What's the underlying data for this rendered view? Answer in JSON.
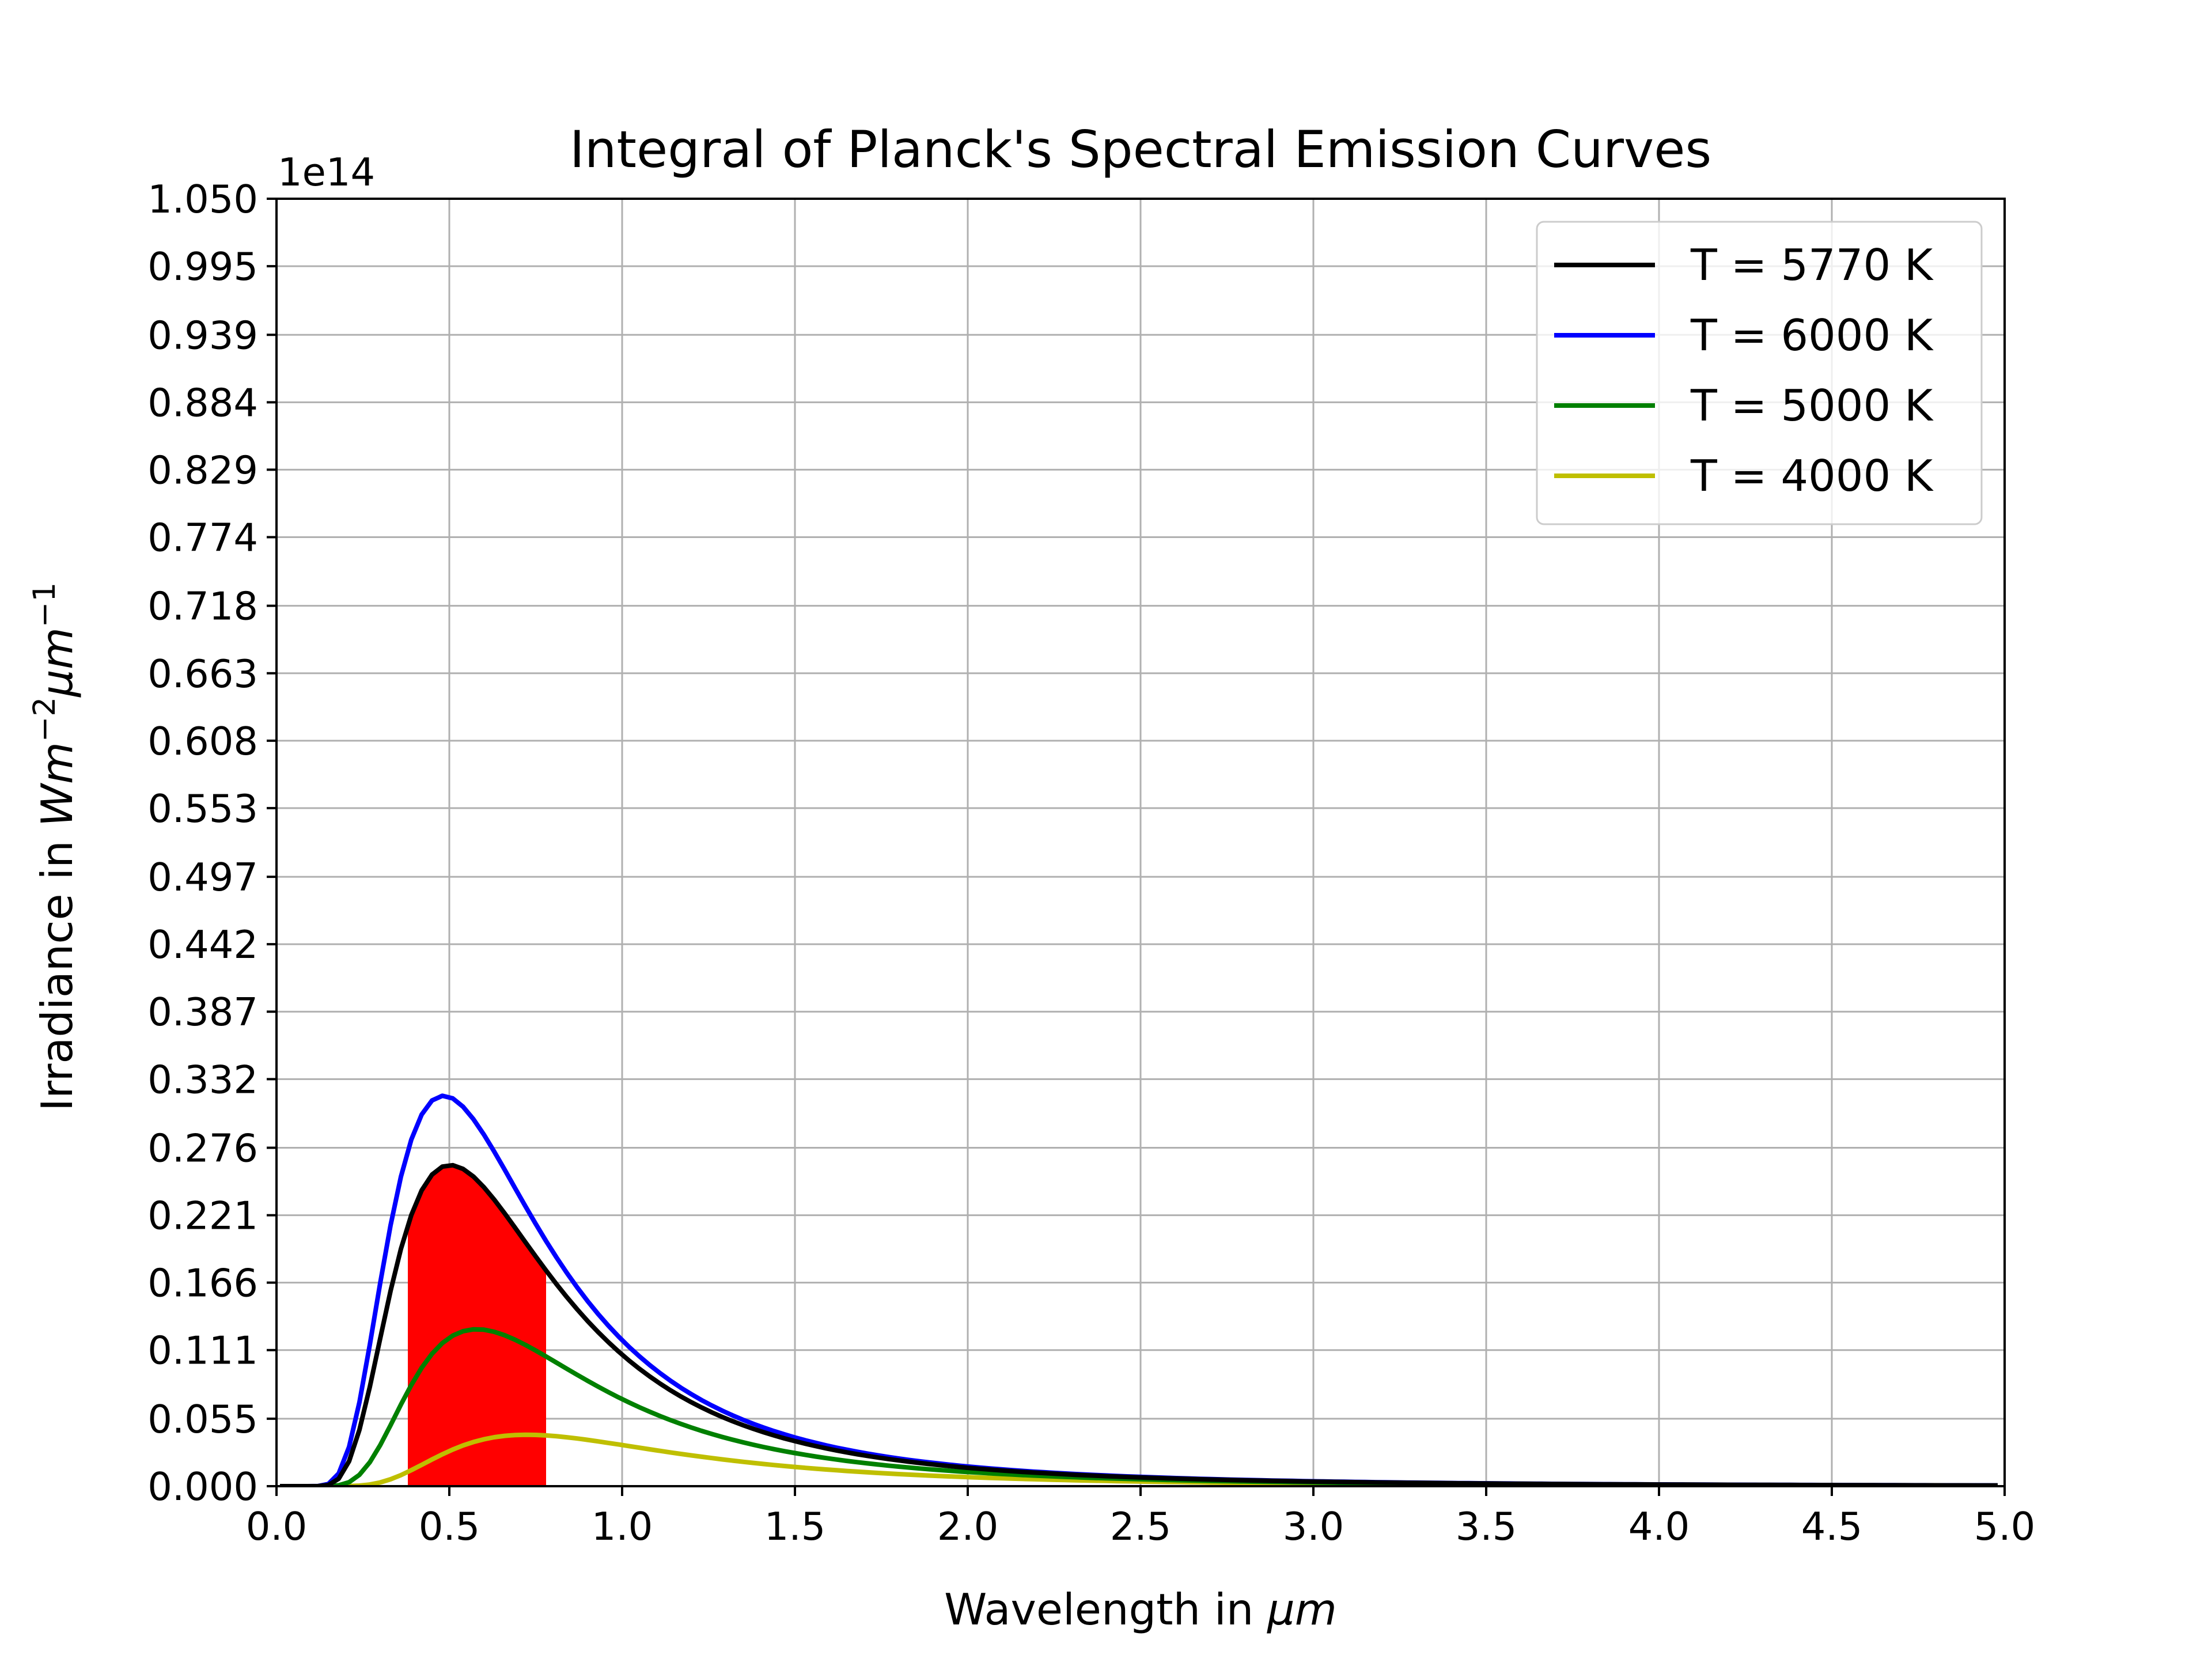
{
  "chart_data": {
    "type": "line",
    "title": "Integral of Planck's Spectral Emission Curves",
    "xlabel": "Wavelength in μm",
    "xlabel_parts": {
      "text": "Wavelength in ",
      "unit": "μm"
    },
    "ylabel": "Irradiance in Wm⁻²μm⁻¹",
    "ylabel_parts": {
      "text": "Irradiance in ",
      "W": "Wm",
      "exp1": "−2",
      "mu": "μm",
      "exp2": "−1"
    },
    "y_scale_label": "1e14",
    "xlim": [
      0.0,
      5.0
    ],
    "ylim": [
      0.0,
      1.05
    ],
    "y_multiplier": 100000000000000.0,
    "x_ticks": [
      "0.0",
      "0.5",
      "1.0",
      "1.5",
      "2.0",
      "2.5",
      "3.0",
      "3.5",
      "4.0",
      "4.5",
      "5.0"
    ],
    "y_ticks": [
      "0.000",
      "0.055",
      "0.111",
      "0.166",
      "0.221",
      "0.276",
      "0.332",
      "0.387",
      "0.442",
      "0.497",
      "0.553",
      "0.608",
      "0.663",
      "0.718",
      "0.774",
      "0.829",
      "0.884",
      "0.939",
      "0.995",
      "1.050"
    ],
    "grid": true,
    "legend_position": "top-right",
    "shaded_region": {
      "series": "T = 5770 K",
      "x_range": [
        0.38,
        0.78
      ],
      "color": "#ff0000"
    },
    "curve_model": "planck",
    "series": [
      {
        "name": "T = 5770 K",
        "temperature": 5770,
        "color": "#000000"
      },
      {
        "name": "T = 6000 K",
        "temperature": 6000,
        "color": "#0000ff"
      },
      {
        "name": "T = 5000 K",
        "temperature": 5000,
        "color": "#008000"
      },
      {
        "name": "T = 4000 K",
        "temperature": 4000,
        "color": "#bfbf00"
      }
    ],
    "x_sample_step": 0.03
  }
}
